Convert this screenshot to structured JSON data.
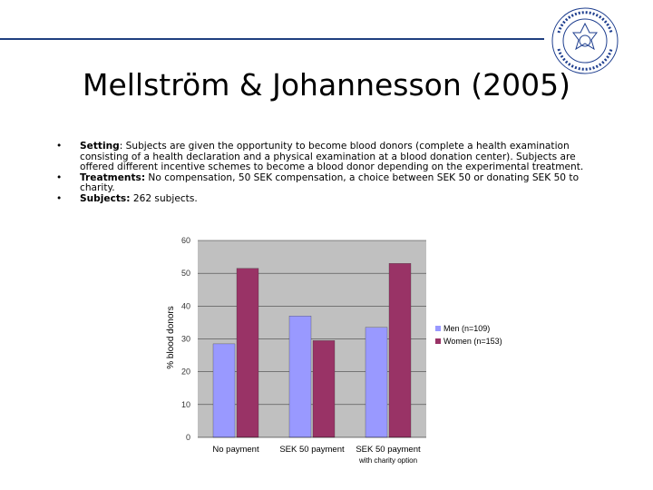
{
  "slide": {
    "title": "Mellström & Johannesson (2005)",
    "bullet_char": "•",
    "bullets": [
      {
        "label": "Setting",
        "text": ": Subjects are given the opportunity to become blood donors (complete a health examination consisting of a health declaration and a physical examination at a blood donation center). Subjects are offered different incentive schemes to become a blood donor depending on the experimental treatment."
      },
      {
        "label": "Treatments:",
        "text": " No compensation, 50 SEK compensation, a choice between SEK 50 or donating SEK 50 to charity."
      },
      {
        "label": "Subjects:",
        "text": " 262 subjects."
      }
    ]
  },
  "logo": {
    "text_top": "HANDELSHÖGSKOLAN I STOCKHOLM",
    "text_bottom": "STOCKHOLM SCHOOL OF ECONOMICS",
    "color": "#1f3f8f"
  },
  "chart_data": {
    "type": "bar",
    "categories": [
      "No payment",
      "SEK 50 payment",
      "SEK 50 payment"
    ],
    "category_sublabels": [
      "",
      "",
      "with charity option"
    ],
    "series": [
      {
        "name": "Men (n=109)",
        "values": [
          28.5,
          37,
          33.5
        ],
        "color": "#9999ff"
      },
      {
        "name": "Women (n=153)",
        "values": [
          51.5,
          29.5,
          53
        ],
        "color": "#993366"
      }
    ],
    "ylabel": "% blood donors",
    "ylim": [
      0,
      60
    ],
    "yticks": [
      0,
      10,
      20,
      30,
      40,
      50,
      60
    ],
    "legend_position": "right",
    "plot_background": "#c0c0c0"
  }
}
